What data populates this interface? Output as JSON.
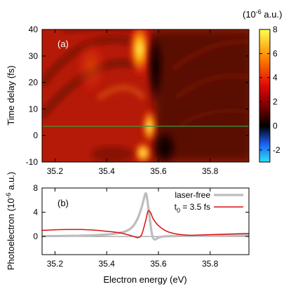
{
  "chart_data": [
    {
      "type": "heatmap",
      "panel_label": "(a)",
      "xlim": [
        35.15,
        35.95
      ],
      "ylim": [
        -10,
        40
      ],
      "x_ticks": [
        "35.2",
        "35.4",
        "35.6",
        "35.8"
      ],
      "y_ticks": [
        "40",
        "30",
        "20",
        "10",
        "0",
        "-10"
      ],
      "ylabel": "Time delay (fs)",
      "colorbar": {
        "unit": "(10",
        "unit_exp": "-6",
        "unit_tail": " a.u.)",
        "range": [
          -3,
          8
        ],
        "ticks": [
          "8",
          "6",
          "4",
          "2",
          "0",
          "-2"
        ]
      },
      "marker_line_y": 3.5,
      "marker_line_color": "#3c9a3c"
    },
    {
      "type": "line",
      "panel_label": "(b)",
      "xlim": [
        35.15,
        35.95
      ],
      "ylim": [
        -3,
        8
      ],
      "x_ticks": [
        "35.2",
        "35.4",
        "35.6",
        "35.8"
      ],
      "y_ticks": [
        "8",
        "4",
        "0"
      ],
      "xlabel": "Electron energy (eV)",
      "ylabel_main": "Photoelectron (10",
      "ylabel_exp": "-6",
      "ylabel_tail": " a.u.)",
      "series": [
        {
          "name": "laser-free",
          "color": "#bdbdbd",
          "x": [
            35.15,
            35.25,
            35.35,
            35.42,
            35.47,
            35.5,
            35.52,
            35.535,
            35.545,
            35.55,
            35.555,
            35.565,
            35.575,
            35.585,
            35.6,
            35.62,
            35.65,
            35.7,
            35.8,
            35.95
          ],
          "y": [
            0.05,
            0.1,
            0.2,
            0.4,
            0.8,
            1.6,
            3.0,
            4.8,
            6.4,
            7.1,
            6.6,
            3.5,
            0.4,
            -0.5,
            -0.2,
            0.0,
            0.05,
            0.1,
            0.15,
            0.2
          ]
        },
        {
          "name_main": "t",
          "name_sub": "0",
          "name_tail": " = 3.5 fs",
          "color": "#dd1111",
          "x": [
            35.15,
            35.2,
            35.28,
            35.35,
            35.4,
            35.45,
            35.48,
            35.505,
            35.52,
            35.535,
            35.55,
            35.56,
            35.57,
            35.58,
            35.6,
            35.63,
            35.67,
            35.72,
            35.8,
            35.95
          ],
          "y": [
            1.0,
            1.1,
            1.15,
            1.05,
            0.85,
            0.6,
            0.3,
            0.0,
            -0.2,
            0.3,
            2.5,
            4.2,
            3.9,
            2.9,
            1.8,
            0.9,
            0.4,
            0.2,
            0.3,
            0.5
          ]
        }
      ]
    }
  ]
}
